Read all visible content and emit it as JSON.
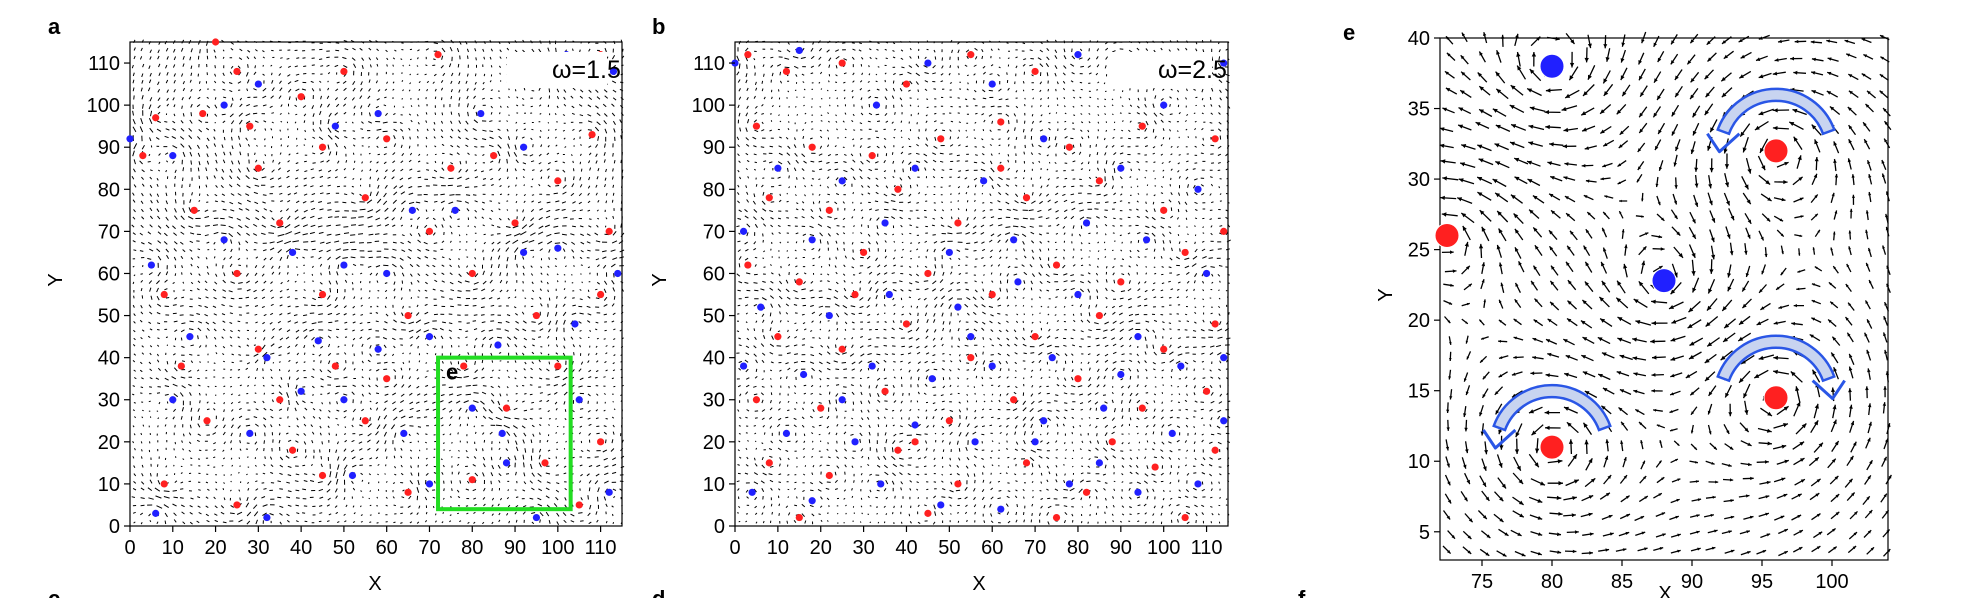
{
  "chart_data": [
    {
      "type": "quiver",
      "panel_label": "a",
      "annotation": "ω=1.5",
      "xlabel": "X",
      "ylabel": "Y",
      "xlim": [
        0,
        115
      ],
      "ylim": [
        0,
        115
      ],
      "xticks": [
        0,
        10,
        20,
        30,
        40,
        50,
        60,
        70,
        80,
        90,
        100,
        110
      ],
      "yticks": [
        0,
        10,
        20,
        30,
        40,
        50,
        60,
        70,
        80,
        90,
        100,
        110
      ],
      "inset_box": {
        "label": "e",
        "x": [
          72,
          103
        ],
        "y": [
          4,
          40
        ],
        "color": "#22dd22"
      },
      "series": [
        {
          "color": "#ff2020",
          "points": [
            [
              6,
              97
            ],
            [
              17,
              98
            ],
            [
              20,
              115
            ],
            [
              25,
              108
            ],
            [
              40,
              102
            ],
            [
              50,
              108
            ],
            [
              72,
              112
            ],
            [
              95,
              105
            ],
            [
              110,
              112
            ],
            [
              3,
              88
            ],
            [
              28,
              95
            ],
            [
              45,
              90
            ],
            [
              60,
              92
            ],
            [
              75,
              85
            ],
            [
              85,
              88
            ],
            [
              100,
              82
            ],
            [
              108,
              93
            ],
            [
              15,
              75
            ],
            [
              35,
              72
            ],
            [
              55,
              78
            ],
            [
              70,
              70
            ],
            [
              90,
              72
            ],
            [
              112,
              70
            ],
            [
              8,
              55
            ],
            [
              25,
              60
            ],
            [
              45,
              55
            ],
            [
              65,
              50
            ],
            [
              80,
              60
            ],
            [
              95,
              50
            ],
            [
              110,
              55
            ],
            [
              12,
              38
            ],
            [
              30,
              42
            ],
            [
              48,
              38
            ],
            [
              60,
              35
            ],
            [
              78,
              38
            ],
            [
              100,
              38
            ],
            [
              18,
              25
            ],
            [
              35,
              30
            ],
            [
              55,
              25
            ],
            [
              80,
              11
            ],
            [
              97,
              15
            ],
            [
              110,
              20
            ],
            [
              8,
              10
            ],
            [
              25,
              5
            ],
            [
              45,
              12
            ],
            [
              65,
              8
            ],
            [
              105,
              5
            ],
            [
              38,
              18
            ],
            [
              88,
              28
            ],
            [
              30,
              85
            ]
          ]
        },
        {
          "color": "#2020ff",
          "points": [
            [
              0,
              92
            ],
            [
              10,
              88
            ],
            [
              22,
              100
            ],
            [
              30,
              105
            ],
            [
              48,
              95
            ],
            [
              58,
              98
            ],
            [
              82,
              98
            ],
            [
              92,
              90
            ],
            [
              102,
              112
            ],
            [
              113,
              108
            ],
            [
              5,
              62
            ],
            [
              22,
              68
            ],
            [
              38,
              65
            ],
            [
              50,
              62
            ],
            [
              66,
              75
            ],
            [
              76,
              75
            ],
            [
              92,
              65
            ],
            [
              100,
              66
            ],
            [
              14,
              45
            ],
            [
              32,
              40
            ],
            [
              44,
              44
            ],
            [
              58,
              42
            ],
            [
              70,
              45
            ],
            [
              86,
              43
            ],
            [
              104,
              48
            ],
            [
              114,
              60
            ],
            [
              10,
              30
            ],
            [
              28,
              22
            ],
            [
              50,
              30
            ],
            [
              64,
              22
            ],
            [
              87,
              22
            ],
            [
              105,
              30
            ],
            [
              6,
              3
            ],
            [
              32,
              2
            ],
            [
              52,
              12
            ],
            [
              70,
              10
            ],
            [
              95,
              2
            ],
            [
              112,
              8
            ],
            [
              40,
              32
            ],
            [
              80,
              28
            ],
            [
              88,
              15
            ],
            [
              60,
              60
            ]
          ]
        }
      ]
    },
    {
      "type": "quiver",
      "panel_label": "b",
      "annotation": "ω=2.5",
      "xlabel": "X",
      "ylabel": "Y",
      "xlim": [
        0,
        115
      ],
      "ylim": [
        0,
        115
      ],
      "xticks": [
        0,
        10,
        20,
        30,
        40,
        50,
        60,
        70,
        80,
        90,
        100,
        110
      ],
      "yticks": [
        0,
        10,
        20,
        30,
        40,
        50,
        60,
        70,
        80,
        90,
        100,
        110
      ],
      "series": [
        {
          "color": "#ff2020",
          "points": [
            [
              3,
              112
            ],
            [
              12,
              108
            ],
            [
              25,
              110
            ],
            [
              40,
              105
            ],
            [
              55,
              112
            ],
            [
              70,
              108
            ],
            [
              90,
              110
            ],
            [
              108,
              105
            ],
            [
              5,
              95
            ],
            [
              18,
              90
            ],
            [
              32,
              88
            ],
            [
              48,
              92
            ],
            [
              62,
              96
            ],
            [
              78,
              90
            ],
            [
              95,
              95
            ],
            [
              112,
              92
            ],
            [
              8,
              78
            ],
            [
              22,
              75
            ],
            [
              38,
              80
            ],
            [
              52,
              72
            ],
            [
              68,
              78
            ],
            [
              85,
              82
            ],
            [
              100,
              75
            ],
            [
              114,
              70
            ],
            [
              3,
              62
            ],
            [
              15,
              58
            ],
            [
              30,
              65
            ],
            [
              45,
              60
            ],
            [
              60,
              55
            ],
            [
              75,
              62
            ],
            [
              90,
              58
            ],
            [
              105,
              65
            ],
            [
              10,
              45
            ],
            [
              25,
              42
            ],
            [
              40,
              48
            ],
            [
              55,
              40
            ],
            [
              70,
              45
            ],
            [
              85,
              50
            ],
            [
              100,
              42
            ],
            [
              112,
              48
            ],
            [
              5,
              30
            ],
            [
              20,
              28
            ],
            [
              35,
              32
            ],
            [
              50,
              25
            ],
            [
              65,
              30
            ],
            [
              80,
              35
            ],
            [
              95,
              28
            ],
            [
              110,
              32
            ],
            [
              8,
              15
            ],
            [
              22,
              12
            ],
            [
              38,
              18
            ],
            [
              52,
              10
            ],
            [
              68,
              15
            ],
            [
              82,
              8
            ],
            [
              98,
              14
            ],
            [
              112,
              18
            ],
            [
              15,
              2
            ],
            [
              45,
              3
            ],
            [
              75,
              2
            ],
            [
              105,
              2
            ],
            [
              28,
              55
            ],
            [
              62,
              85
            ],
            [
              88,
              20
            ],
            [
              42,
              20
            ]
          ]
        },
        {
          "color": "#2020ff",
          "points": [
            [
              0,
              110
            ],
            [
              15,
              113
            ],
            [
              33,
              100
            ],
            [
              45,
              110
            ],
            [
              60,
              105
            ],
            [
              80,
              112
            ],
            [
              100,
              100
            ],
            [
              114,
              110
            ],
            [
              10,
              85
            ],
            [
              25,
              82
            ],
            [
              42,
              85
            ],
            [
              58,
              82
            ],
            [
              72,
              92
            ],
            [
              90,
              85
            ],
            [
              108,
              80
            ],
            [
              2,
              70
            ],
            [
              18,
              68
            ],
            [
              35,
              72
            ],
            [
              50,
              65
            ],
            [
              65,
              68
            ],
            [
              82,
              72
            ],
            [
              96,
              68
            ],
            [
              110,
              60
            ],
            [
              6,
              52
            ],
            [
              22,
              50
            ],
            [
              36,
              55
            ],
            [
              52,
              52
            ],
            [
              66,
              58
            ],
            [
              80,
              55
            ],
            [
              94,
              45
            ],
            [
              114,
              40
            ],
            [
              2,
              38
            ],
            [
              16,
              36
            ],
            [
              32,
              38
            ],
            [
              46,
              35
            ],
            [
              60,
              38
            ],
            [
              74,
              40
            ],
            [
              90,
              36
            ],
            [
              104,
              38
            ],
            [
              12,
              22
            ],
            [
              28,
              20
            ],
            [
              42,
              24
            ],
            [
              56,
              20
            ],
            [
              72,
              25
            ],
            [
              86,
              28
            ],
            [
              102,
              22
            ],
            [
              114,
              25
            ],
            [
              4,
              8
            ],
            [
              18,
              6
            ],
            [
              34,
              10
            ],
            [
              48,
              5
            ],
            [
              62,
              4
            ],
            [
              78,
              10
            ],
            [
              94,
              8
            ],
            [
              108,
              10
            ],
            [
              25,
              30
            ],
            [
              55,
              45
            ],
            [
              85,
              15
            ],
            [
              70,
              20
            ]
          ]
        }
      ]
    },
    {
      "type": "quiver",
      "panel_label": "e",
      "xlabel": "X",
      "ylabel": "Y",
      "xlim": [
        72,
        104
      ],
      "ylim": [
        3,
        40
      ],
      "xticks": [
        75,
        80,
        85,
        90,
        95,
        100
      ],
      "yticks": [
        5,
        10,
        15,
        20,
        25,
        30,
        35,
        40
      ],
      "series": [
        {
          "color": "#ff2020",
          "points": [
            [
              96,
              32
            ],
            [
              72.5,
              26
            ],
            [
              96,
              14.5
            ],
            [
              80,
              11
            ]
          ]
        },
        {
          "color": "#2020ff",
          "points": [
            [
              80,
              38
            ],
            [
              88,
              22.8
            ]
          ]
        }
      ],
      "rotation_arrows": [
        {
          "center": [
            96,
            32
          ],
          "direction": "counterclockwise"
        },
        {
          "center": [
            80,
            11
          ],
          "direction": "counterclockwise"
        },
        {
          "center": [
            96,
            14.5
          ],
          "direction": "clockwise"
        }
      ]
    },
    {
      "panel_label": "c"
    },
    {
      "panel_label": "d"
    },
    {
      "panel_label": "f"
    }
  ]
}
